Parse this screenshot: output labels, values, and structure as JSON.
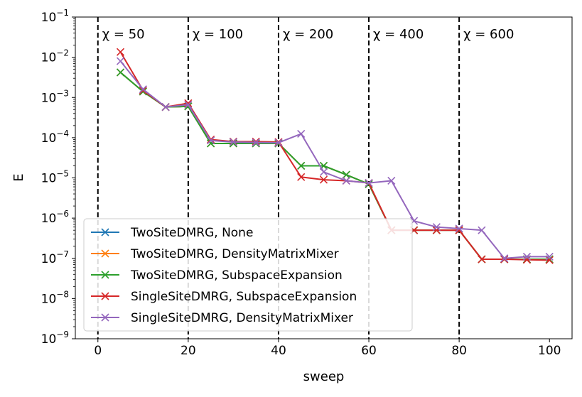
{
  "chart_data": {
    "type": "line",
    "xlabel": "sweep",
    "ylabel": "E",
    "yscale": "log",
    "xlim": [
      -5,
      105
    ],
    "ylim": [
      1e-09,
      0.1
    ],
    "xticks": [
      0,
      20,
      40,
      60,
      80,
      100
    ],
    "xtick_labels": [
      "0",
      "20",
      "40",
      "60",
      "80",
      "100"
    ],
    "yticks": [
      1e-09,
      1e-08,
      1e-07,
      1e-06,
      1e-05,
      0.0001,
      0.001,
      0.01,
      0.1
    ],
    "ytick_labels": [
      {
        "base": "10",
        "exp": "−9"
      },
      {
        "base": "10",
        "exp": "−8"
      },
      {
        "base": "10",
        "exp": "−7"
      },
      {
        "base": "10",
        "exp": "−6"
      },
      {
        "base": "10",
        "exp": "−5"
      },
      {
        "base": "10",
        "exp": "−4"
      },
      {
        "base": "10",
        "exp": "−3"
      },
      {
        "base": "10",
        "exp": "−2"
      },
      {
        "base": "10",
        "exp": "−1"
      }
    ],
    "vlines": [
      {
        "x": 0,
        "label": "χ = 50"
      },
      {
        "x": 20,
        "label": "χ = 100"
      },
      {
        "x": 40,
        "label": "χ = 200"
      },
      {
        "x": 60,
        "label": "χ = 400"
      },
      {
        "x": 80,
        "label": "χ = 600"
      }
    ],
    "legend_position": "lower-left",
    "series": [
      {
        "name": "TwoSiteDMRG, None",
        "color": "#1f77b4",
        "x": [
          5,
          10,
          15,
          20,
          25,
          30,
          35,
          40,
          45,
          50,
          55,
          60,
          65,
          70,
          75,
          80,
          85,
          90,
          95,
          100
        ],
        "y": [
          0.0042,
          0.0014,
          0.00058,
          0.0006,
          7.2e-05,
          7.2e-05,
          7.2e-05,
          7.2e-05,
          2e-05,
          2e-05,
          1.2e-05,
          7e-06,
          5e-07,
          5e-07,
          5e-07,
          5e-07,
          9.5e-08,
          9.5e-08,
          9.5e-08,
          9.5e-08
        ]
      },
      {
        "name": "TwoSiteDMRG, DensityMatrixMixer",
        "color": "#ff7f0e",
        "x": [
          5,
          10,
          15,
          20,
          25,
          30,
          35,
          40,
          45,
          50,
          55,
          60,
          65,
          70,
          75,
          80,
          85,
          90,
          95,
          100
        ],
        "y": [
          0.0042,
          0.0014,
          0.00058,
          0.0006,
          7.2e-05,
          7.2e-05,
          7.2e-05,
          7.2e-05,
          2e-05,
          2e-05,
          1.2e-05,
          7e-06,
          5e-07,
          5e-07,
          5e-07,
          5e-07,
          9.5e-08,
          9.5e-08,
          9.5e-08,
          9.5e-08
        ]
      },
      {
        "name": "TwoSiteDMRG, SubspaceExpansion",
        "color": "#2ca02c",
        "x": [
          5,
          10,
          15,
          20,
          25,
          30,
          35,
          40,
          45,
          50,
          55,
          60,
          65,
          70,
          75,
          80,
          85,
          90,
          95,
          100
        ],
        "y": [
          0.0042,
          0.0014,
          0.00058,
          0.0006,
          7.2e-05,
          7.2e-05,
          7.2e-05,
          7.2e-05,
          2e-05,
          2e-05,
          1.2e-05,
          7e-06,
          5e-07,
          5e-07,
          5e-07,
          5e-07,
          9.5e-08,
          9.5e-08,
          9.5e-08,
          9.5e-08
        ]
      },
      {
        "name": "SingleSiteDMRG, SubspaceExpansion",
        "color": "#d62728",
        "x": [
          5,
          10,
          15,
          20,
          25,
          30,
          35,
          40,
          45,
          50,
          55,
          60,
          65,
          70,
          75,
          80,
          85,
          90,
          95,
          100
        ],
        "y": [
          0.0135,
          0.0015,
          0.00058,
          0.00072,
          9e-05,
          8e-05,
          8e-05,
          7.8e-05,
          1.05e-05,
          9e-06,
          8.5e-06,
          7.5e-06,
          5e-07,
          5e-07,
          5e-07,
          5e-07,
          9.5e-08,
          9.5e-08,
          9.2e-08,
          9e-08
        ]
      },
      {
        "name": "SingleSiteDMRG, DensityMatrixMixer",
        "color": "#9467bd",
        "x": [
          5,
          10,
          15,
          20,
          25,
          30,
          35,
          40,
          45,
          50,
          55,
          60,
          65,
          70,
          75,
          80,
          85,
          90,
          95,
          100
        ],
        "y": [
          0.008,
          0.0016,
          0.00058,
          0.00066,
          8.5e-05,
          7.8e-05,
          7.6e-05,
          7.5e-05,
          0.000125,
          1.4e-05,
          8.5e-06,
          7.5e-06,
          8.5e-06,
          8.5e-07,
          6e-07,
          5.5e-07,
          5e-07,
          1e-07,
          1.1e-07,
          1.1e-07
        ]
      }
    ]
  }
}
